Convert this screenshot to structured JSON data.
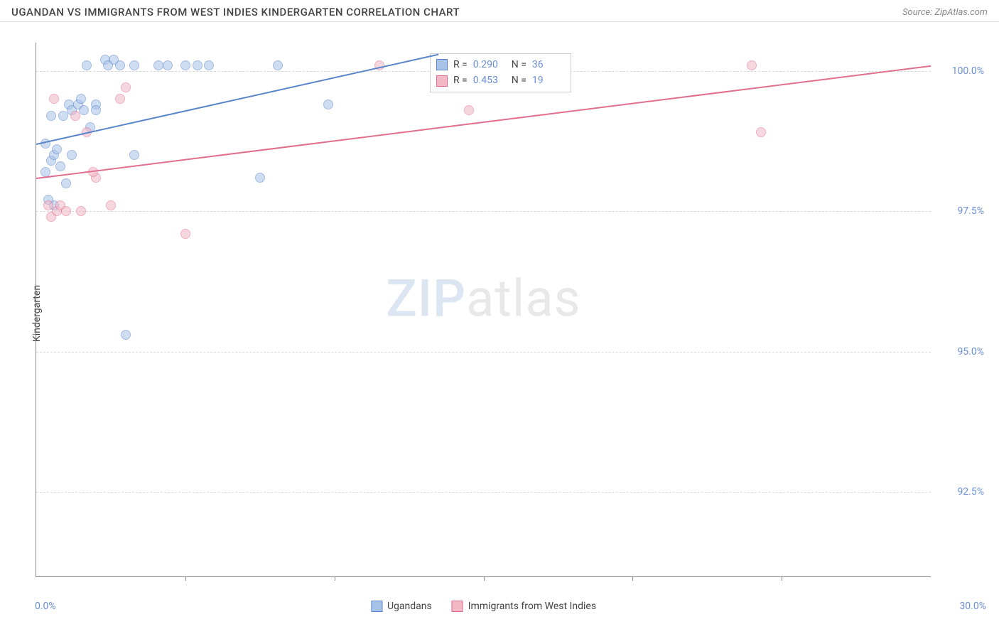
{
  "header": {
    "title": "UGANDAN VS IMMIGRANTS FROM WEST INDIES KINDERGARTEN CORRELATION CHART",
    "source": "Source: ZipAtlas.com"
  },
  "watermark": {
    "part1": "ZIP",
    "part2": "atlas"
  },
  "chart": {
    "type": "scatter",
    "ylabel": "Kindergarten",
    "xlim": [
      0,
      30
    ],
    "ylim": [
      91,
      100.5
    ],
    "yticks": [
      {
        "v": 92.5,
        "label": "92.5%"
      },
      {
        "v": 95.0,
        "label": "95.0%"
      },
      {
        "v": 97.5,
        "label": "97.5%"
      },
      {
        "v": 100.0,
        "label": "100.0%"
      }
    ],
    "xticks_minor": [
      5,
      10,
      15,
      20,
      25
    ],
    "xtick_labels": [
      {
        "v": 0,
        "label": "0.0%"
      },
      {
        "v": 30,
        "label": "30.0%"
      }
    ],
    "marker_size": 14,
    "marker_opacity": 0.55,
    "background_color": "#ffffff",
    "grid_color": "#d8d8d8",
    "series": [
      {
        "name": "Ugandans",
        "color_fill": "#a8c3e8",
        "color_stroke": "#5a86c9",
        "R": "0.290",
        "N": "36",
        "trend": {
          "x1": 0,
          "y1": 98.7,
          "x2": 13.5,
          "y2": 100.3
        },
        "points": [
          [
            0.3,
            98.2
          ],
          [
            0.5,
            98.4
          ],
          [
            0.6,
            98.5
          ],
          [
            0.8,
            98.3
          ],
          [
            0.7,
            98.6
          ],
          [
            1.0,
            98.0
          ],
          [
            1.2,
            98.5
          ],
          [
            0.9,
            99.2
          ],
          [
            1.1,
            99.4
          ],
          [
            1.2,
            99.3
          ],
          [
            1.4,
            99.4
          ],
          [
            1.6,
            99.3
          ],
          [
            1.8,
            99.0
          ],
          [
            2.0,
            99.4
          ],
          [
            2.3,
            100.2
          ],
          [
            2.6,
            100.2
          ],
          [
            2.0,
            99.3
          ],
          [
            2.4,
            100.1
          ],
          [
            2.8,
            100.1
          ],
          [
            3.3,
            100.1
          ],
          [
            3.3,
            98.5
          ],
          [
            3.0,
            95.3
          ],
          [
            4.1,
            100.1
          ],
          [
            4.4,
            100.1
          ],
          [
            5.0,
            100.1
          ],
          [
            5.4,
            100.1
          ],
          [
            5.8,
            100.1
          ],
          [
            7.5,
            98.1
          ],
          [
            8.1,
            100.1
          ],
          [
            9.8,
            99.4
          ],
          [
            0.6,
            97.6
          ],
          [
            0.4,
            97.7
          ],
          [
            1.5,
            99.5
          ],
          [
            0.5,
            99.2
          ],
          [
            1.7,
            100.1
          ],
          [
            0.3,
            98.7
          ]
        ]
      },
      {
        "name": "Immigrants from West Indies",
        "color_fill": "#f2b8c6",
        "color_stroke": "#e16e8c",
        "R": "0.453",
        "N": "19",
        "trend": {
          "x1": 0,
          "y1": 98.1,
          "x2": 30,
          "y2": 100.1
        },
        "points": [
          [
            0.4,
            97.6
          ],
          [
            0.5,
            97.4
          ],
          [
            0.7,
            97.5
          ],
          [
            0.8,
            97.6
          ],
          [
            1.0,
            97.5
          ],
          [
            1.5,
            97.5
          ],
          [
            2.0,
            98.1
          ],
          [
            2.5,
            97.6
          ],
          [
            1.7,
            98.9
          ],
          [
            2.8,
            99.5
          ],
          [
            0.6,
            99.5
          ],
          [
            1.3,
            99.2
          ],
          [
            3.0,
            99.7
          ],
          [
            5.0,
            97.1
          ],
          [
            11.5,
            100.1
          ],
          [
            14.5,
            99.3
          ],
          [
            24.0,
            100.1
          ],
          [
            24.3,
            98.9
          ],
          [
            1.9,
            98.2
          ]
        ]
      }
    ],
    "stats_box": {
      "left_pct": 44,
      "top_pct": 2
    },
    "legend_bottom": [
      {
        "label": "Ugandans",
        "fill": "#a8c3e8",
        "stroke": "#5a86c9"
      },
      {
        "label": "Immigrants from West Indies",
        "fill": "#f2b8c6",
        "stroke": "#e16e8c"
      }
    ]
  }
}
